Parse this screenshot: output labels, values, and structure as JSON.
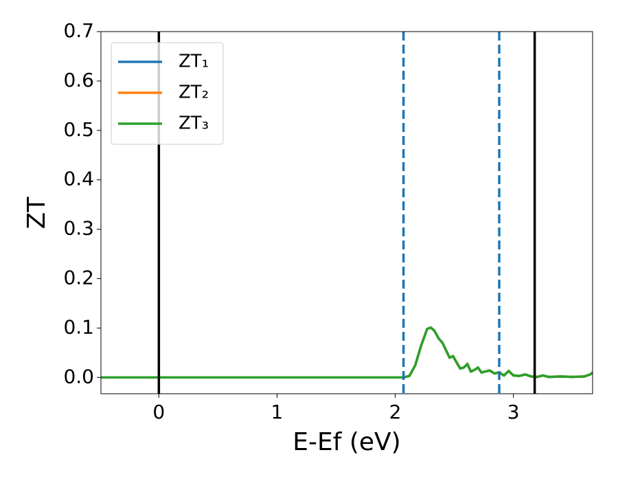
{
  "chart_data": {
    "type": "line",
    "xlabel": "E-Ef (eV)",
    "ylabel": "ZT",
    "x": [
      -0.49,
      0,
      1,
      2,
      2.07,
      2.12,
      2.17,
      2.22,
      2.27,
      2.3,
      2.33,
      2.37,
      2.4,
      2.43,
      2.46,
      2.49,
      2.52,
      2.55,
      2.58,
      2.61,
      2.64,
      2.67,
      2.7,
      2.73,
      2.76,
      2.8,
      2.84,
      2.88,
      2.92,
      2.96,
      3.0,
      3.05,
      3.1,
      3.15,
      3.2,
      3.25,
      3.3,
      3.4,
      3.5,
      3.6,
      3.65,
      3.67
    ],
    "series": [
      {
        "name": "ZT₁",
        "color": "#1f77b4",
        "values": [
          0,
          0,
          0,
          0,
          0,
          0.003,
          0.025,
          0.065,
          0.098,
          0.101,
          0.095,
          0.078,
          0.07,
          0.055,
          0.04,
          0.043,
          0.03,
          0.018,
          0.02,
          0.027,
          0.012,
          0.015,
          0.02,
          0.01,
          0.012,
          0.014,
          0.008,
          0.01,
          0.004,
          0.013,
          0.004,
          0.003,
          0.006,
          0.002,
          0.001,
          0.004,
          0.001,
          0.002,
          0.001,
          0.002,
          0.006,
          0.01
        ]
      },
      {
        "name": "ZT₂",
        "color": "#ff7f0e",
        "values": [
          0,
          0,
          0,
          0,
          0,
          0.003,
          0.025,
          0.065,
          0.098,
          0.101,
          0.095,
          0.078,
          0.07,
          0.055,
          0.04,
          0.043,
          0.03,
          0.018,
          0.02,
          0.027,
          0.012,
          0.015,
          0.02,
          0.01,
          0.012,
          0.014,
          0.008,
          0.01,
          0.004,
          0.013,
          0.004,
          0.003,
          0.006,
          0.002,
          0.001,
          0.004,
          0.001,
          0.002,
          0.001,
          0.002,
          0.006,
          0.01
        ]
      },
      {
        "name": "ZT₃",
        "color": "#2ca02c",
        "values": [
          0,
          0,
          0,
          0,
          0,
          0.003,
          0.025,
          0.065,
          0.098,
          0.101,
          0.095,
          0.078,
          0.07,
          0.055,
          0.04,
          0.043,
          0.03,
          0.018,
          0.02,
          0.027,
          0.012,
          0.015,
          0.02,
          0.01,
          0.012,
          0.014,
          0.008,
          0.01,
          0.004,
          0.013,
          0.004,
          0.003,
          0.006,
          0.002,
          0.001,
          0.004,
          0.001,
          0.002,
          0.001,
          0.002,
          0.006,
          0.01
        ]
      }
    ],
    "vlines": [
      {
        "x": 0,
        "color": "#000000",
        "style": "solid"
      },
      {
        "x": 3.18,
        "color": "#000000",
        "style": "solid"
      },
      {
        "x": 2.07,
        "color": "#1f77b4",
        "style": "dashed"
      },
      {
        "x": 2.88,
        "color": "#1f77b4",
        "style": "dashed"
      }
    ],
    "xlim": [
      -0.49,
      3.67
    ],
    "xticks": [
      0,
      1,
      2,
      3
    ],
    "ylim": [
      -0.033,
      0.7
    ],
    "yticks": [
      {
        "value": 0,
        "label": "0.0"
      },
      0.1,
      0.2,
      0.3,
      0.4,
      0.5,
      0.6,
      0.7
    ],
    "legend": "upper left",
    "grid": false
  }
}
